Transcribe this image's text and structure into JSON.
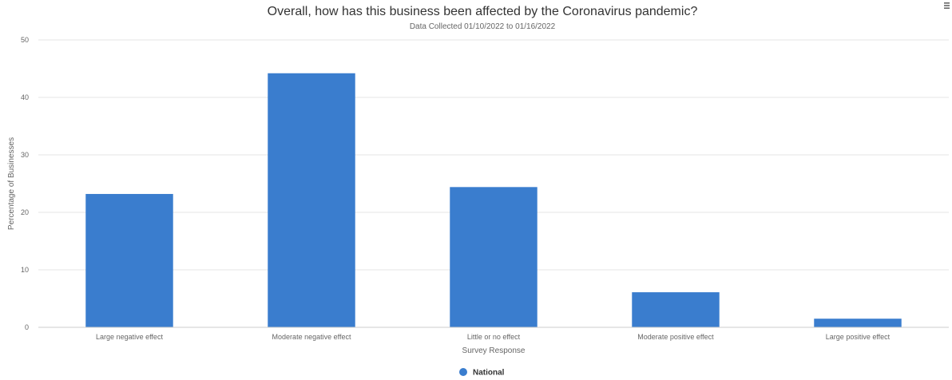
{
  "colors": {
    "bar": "#3a7dce",
    "grid": "#e6e6e6",
    "axis_line": "#cccccc",
    "text": "#333333",
    "muted_text": "#666666"
  },
  "menu": {
    "icon": "hamburger-menu-icon"
  },
  "chart_data": {
    "type": "bar",
    "title": "Overall, how has this business been affected by the Coronavirus pandemic?",
    "subtitle": "Data Collected 01/10/2022 to 01/16/2022",
    "xlabel": "Survey Response",
    "ylabel": "Percentage of Businesses",
    "categories": [
      "Large negative effect",
      "Moderate negative effect",
      "Little or no effect",
      "Moderate positive effect",
      "Large positive effect"
    ],
    "series": [
      {
        "name": "National",
        "values": [
          23.2,
          44.2,
          24.4,
          6.1,
          1.5
        ]
      }
    ],
    "ylim": [
      0,
      50
    ],
    "yticks": [
      0,
      10,
      20,
      30,
      40,
      50
    ],
    "grid": true,
    "legend_position": "bottom-center"
  }
}
